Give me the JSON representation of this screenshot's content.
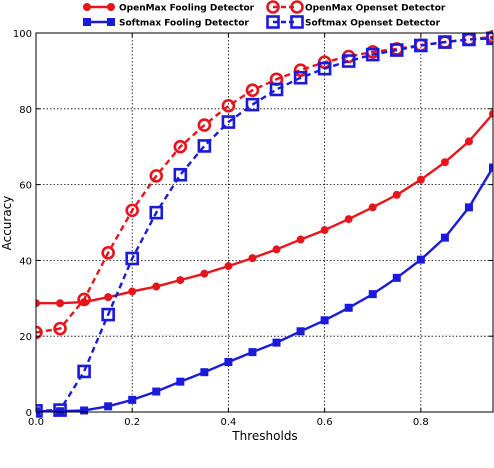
{
  "chart_data": {
    "type": "line",
    "xlabel": "Thresholds",
    "ylabel": "Accuracy",
    "xlim": [
      0.0,
      0.95
    ],
    "ylim": [
      0,
      100
    ],
    "xticks": [
      "0.0",
      "0.2",
      "0.4",
      "0.6",
      "0.8"
    ],
    "xtick_values": [
      0.0,
      0.2,
      0.4,
      0.6,
      0.8
    ],
    "yticks": [
      "0",
      "20",
      "40",
      "60",
      "80",
      "100"
    ],
    "ytick_values": [
      0,
      20,
      40,
      60,
      80,
      100
    ],
    "grid": true,
    "legend_position": "top",
    "x": [
      0.0,
      0.05,
      0.1,
      0.15,
      0.2,
      0.25,
      0.3,
      0.35,
      0.4,
      0.45,
      0.5,
      0.55,
      0.6,
      0.65,
      0.7,
      0.75,
      0.8,
      0.85,
      0.9,
      0.95
    ],
    "series": [
      {
        "name": "OpenMax Fooling Detector",
        "color": "#e8141b",
        "line": "solid",
        "marker": "circle",
        "values": [
          28.7,
          28.7,
          29.0,
          30.3,
          31.8,
          33.1,
          34.8,
          36.5,
          38.5,
          40.6,
          42.9,
          45.5,
          48.0,
          50.9,
          54.0,
          57.3,
          61.3,
          65.9,
          71.4,
          78.7
        ]
      },
      {
        "name": "Softmax Fooling Detector",
        "color": "#1a1adb",
        "line": "solid",
        "marker": "square",
        "values": [
          0.2,
          0.2,
          0.4,
          1.5,
          3.2,
          5.4,
          8.0,
          10.5,
          13.2,
          15.8,
          18.3,
          21.3,
          24.2,
          27.5,
          31.1,
          35.4,
          40.2,
          46.0,
          54.0,
          64.5
        ]
      },
      {
        "name": "OpenMax Openset Detector",
        "color": "#e8141b",
        "line": "dashed",
        "marker": "big-circle",
        "values": [
          21.0,
          22.0,
          29.7,
          42.0,
          53.2,
          62.3,
          70.0,
          75.7,
          80.8,
          84.9,
          87.8,
          90.2,
          92.3,
          93.8,
          95.0,
          95.8,
          96.8,
          97.6,
          98.3,
          99.0
        ]
      },
      {
        "name": "Softmax Openset Detector",
        "color": "#1a1adb",
        "line": "dashed",
        "marker": "big-square",
        "values": [
          0.3,
          0.5,
          10.7,
          25.7,
          40.5,
          52.6,
          62.6,
          70.2,
          76.5,
          81.1,
          85.1,
          88.2,
          90.6,
          92.6,
          94.3,
          95.5,
          96.7,
          97.6,
          98.3,
          98.6
        ]
      }
    ]
  }
}
